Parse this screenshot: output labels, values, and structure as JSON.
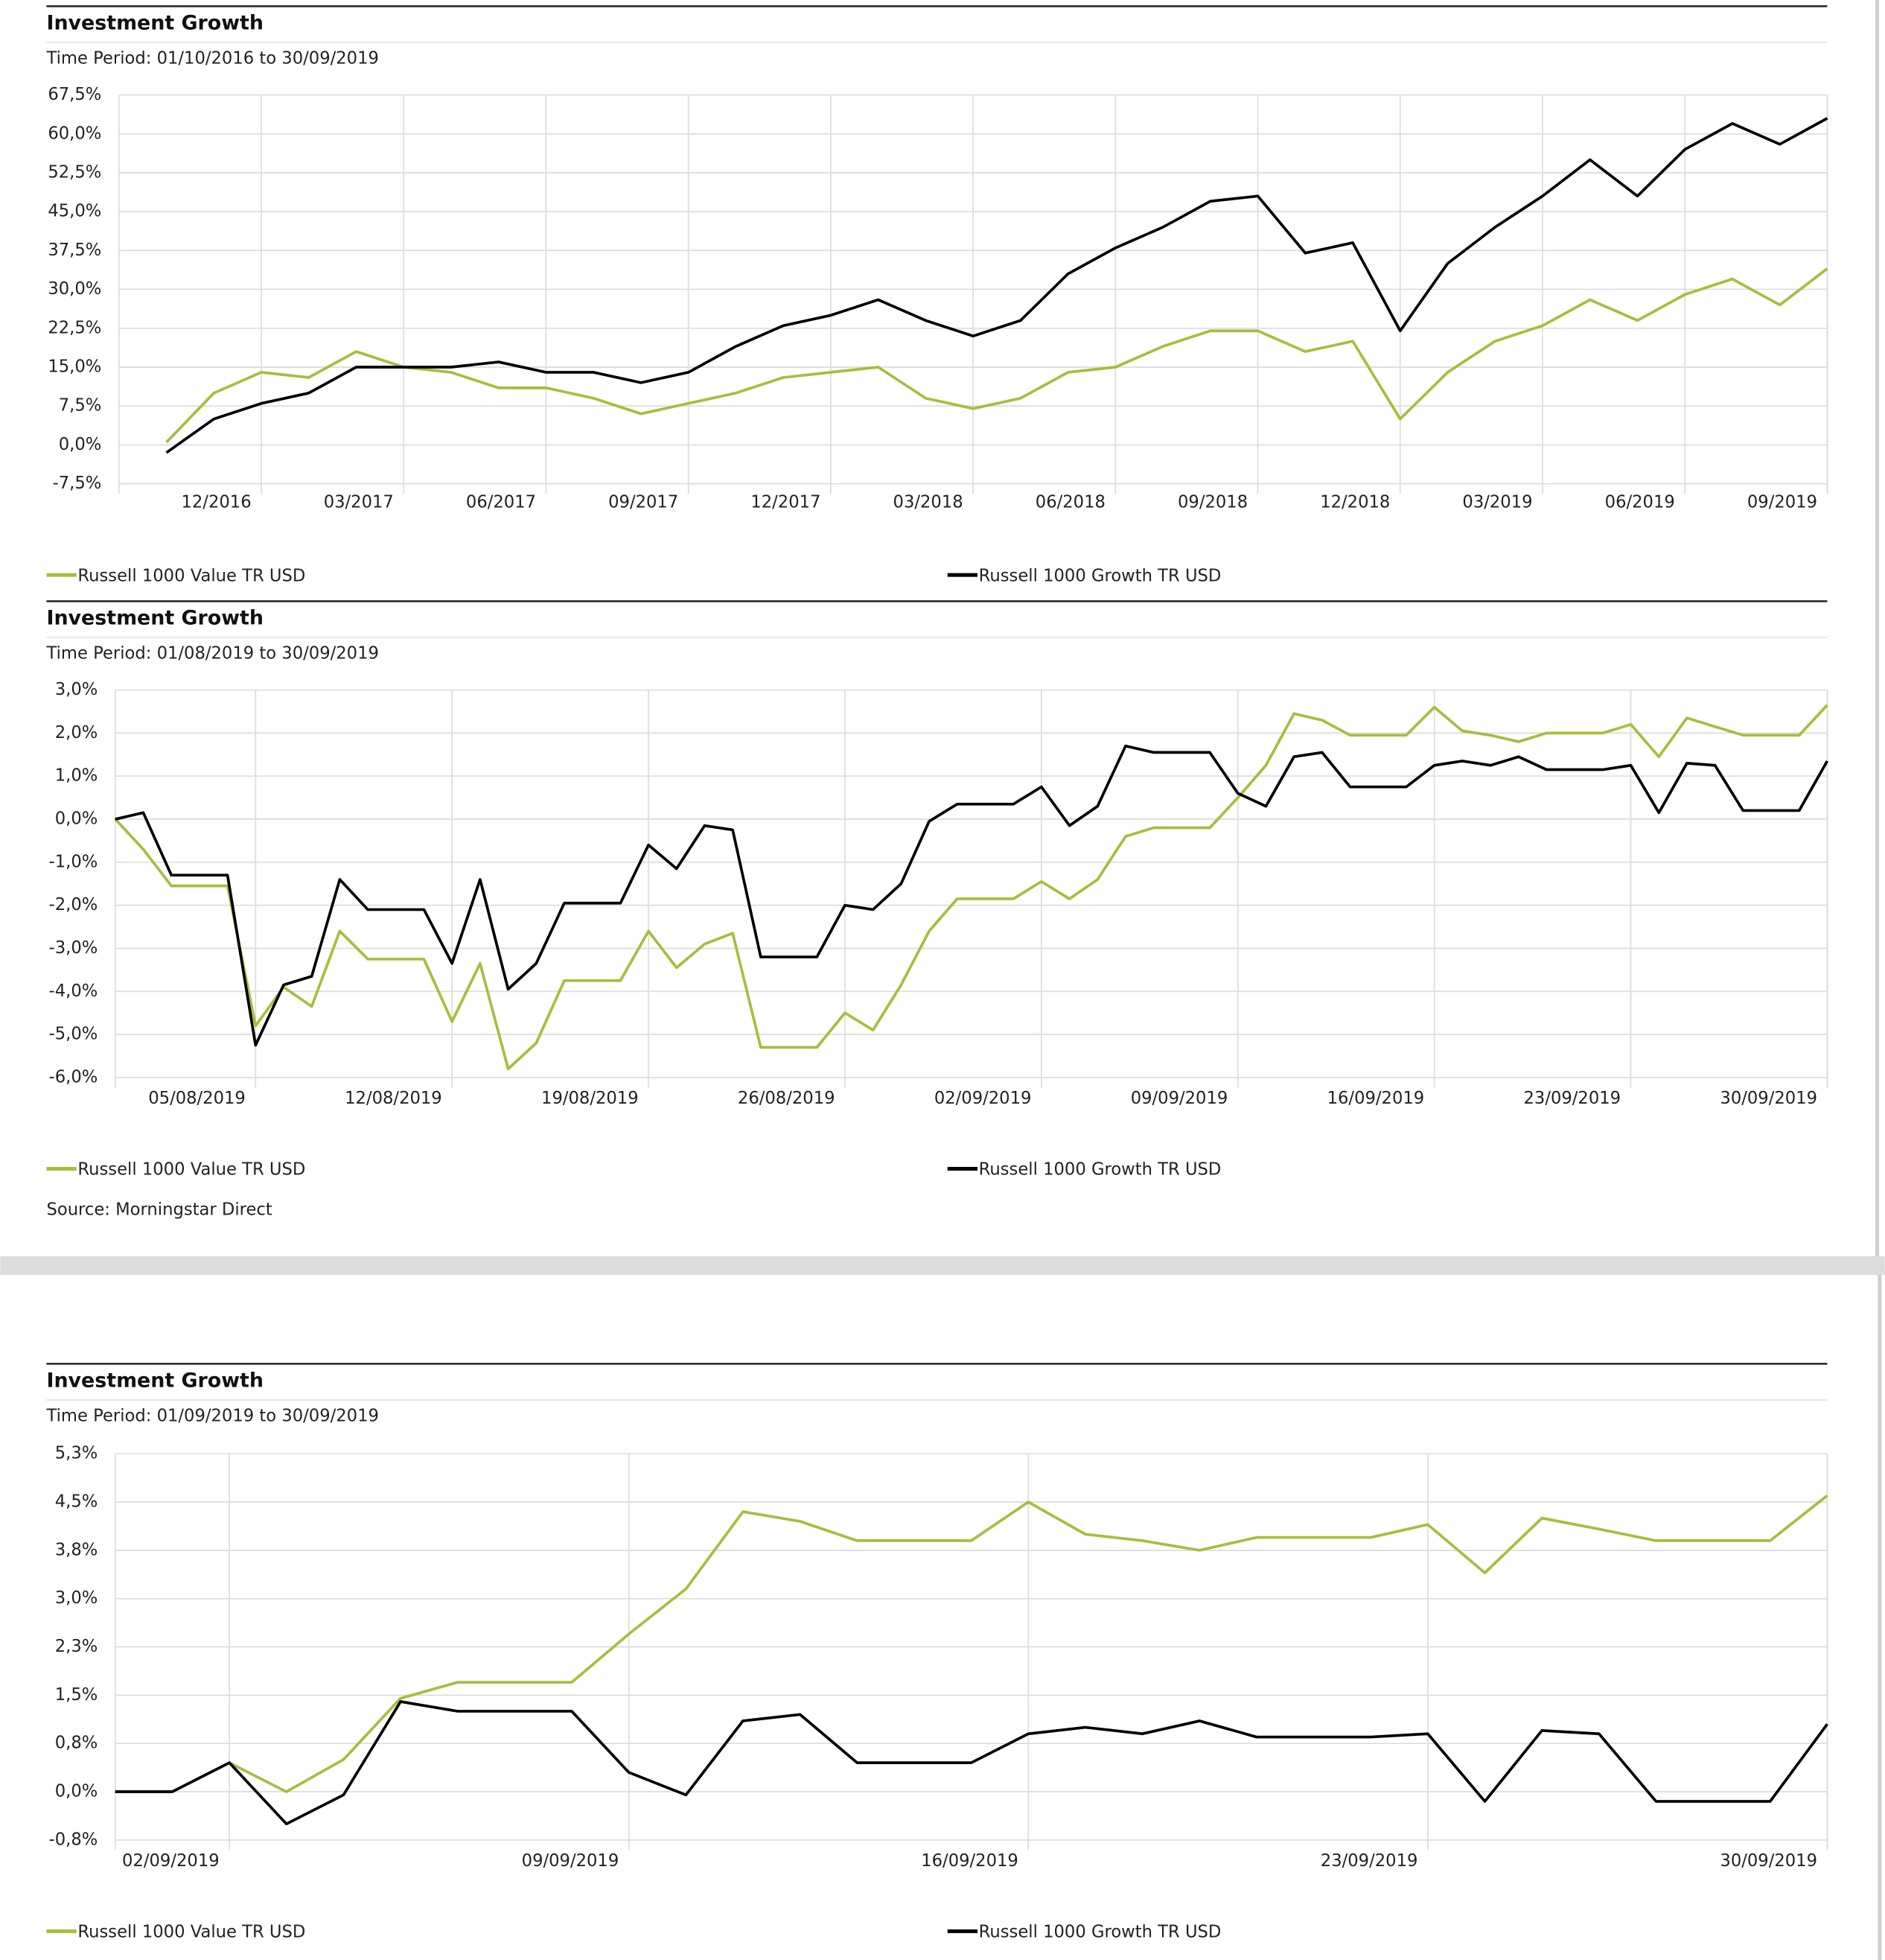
{
  "chart_data": [
    {
      "type": "line",
      "title": "Investment Growth",
      "subtitle": "Time Period: 01/10/2016 to 30/09/2019",
      "categories": [
        null,
        null,
        "12/2016",
        null,
        null,
        "03/2017",
        null,
        null,
        "06/2017",
        null,
        null,
        "09/2017",
        null,
        null,
        "12/2017",
        null,
        null,
        "03/2018",
        null,
        null,
        "06/2018",
        null,
        null,
        "09/2018",
        null,
        null,
        "12/2018",
        null,
        null,
        "03/2019",
        null,
        null,
        "06/2019",
        null,
        null,
        "09/2019"
      ],
      "series": [
        {
          "name": "Russell 1000 Value TR USD",
          "color": "#a4bf3c",
          "values": [
            0.5,
            10,
            14,
            13,
            18,
            15,
            14,
            11,
            11,
            9,
            6,
            8,
            10,
            13,
            14,
            15,
            9,
            7,
            9,
            14,
            15,
            19,
            22,
            22,
            18,
            20,
            5,
            14,
            20,
            23,
            28,
            24,
            29,
            32,
            27,
            34
          ]
        },
        {
          "name": "Russell 1000 Growth TR USD",
          "color": "#000000",
          "values": [
            -1.5,
            5,
            8,
            10,
            15,
            15,
            15,
            16,
            14,
            14,
            12,
            14,
            19,
            23,
            25,
            28,
            24,
            21,
            24,
            33,
            38,
            42,
            47,
            48,
            37,
            39,
            22,
            35,
            42,
            48,
            55,
            48,
            57,
            62,
            58,
            63
          ]
        }
      ],
      "ylim": [
        -7.5,
        67.5
      ],
      "yticks": [
        {
          "value": -7.5,
          "label": "-7,5%"
        },
        {
          "value": 0,
          "label": "0,0%"
        },
        {
          "value": 7.5,
          "label": "7,5%"
        },
        {
          "value": 15,
          "label": "15,0%"
        },
        {
          "value": 22.5,
          "label": "22,5%"
        },
        {
          "value": 30,
          "label": "30,0%"
        },
        {
          "value": 37.5,
          "label": "37,5%"
        },
        {
          "value": 45,
          "label": "45,0%"
        },
        {
          "value": 52.5,
          "label": "52,5%"
        },
        {
          "value": 60,
          "label": "60,0%"
        },
        {
          "value": 67.5,
          "label": "67,5%"
        }
      ],
      "grid": true
    },
    {
      "type": "line",
      "title": "Investment Growth",
      "subtitle": "Time Period: 01/08/2019 to 30/09/2019",
      "x": [
        "31/07/2019",
        "01/08/2019",
        "02/08/2019",
        "03/08/2019",
        "04/08/2019",
        "05/08/2019",
        "06/08/2019",
        "07/08/2019",
        "08/08/2019",
        "09/08/2019",
        "10/08/2019",
        "11/08/2019",
        "12/08/2019",
        "13/08/2019",
        "14/08/2019",
        "15/08/2019",
        "16/08/2019",
        "17/08/2019",
        "18/08/2019",
        "19/08/2019",
        "20/08/2019",
        "21/08/2019",
        "22/08/2019",
        "23/08/2019",
        "24/08/2019",
        "25/08/2019",
        "26/08/2019",
        "27/08/2019",
        "28/08/2019",
        "29/08/2019",
        "30/08/2019",
        "31/08/2019",
        "01/09/2019",
        "02/09/2019",
        "03/09/2019",
        "04/09/2019",
        "05/09/2019",
        "06/09/2019",
        "07/09/2019",
        "08/09/2019",
        "09/09/2019",
        "10/09/2019",
        "11/09/2019",
        "12/09/2019",
        "13/09/2019",
        "14/09/2019",
        "15/09/2019",
        "16/09/2019",
        "17/09/2019",
        "18/09/2019",
        "19/09/2019",
        "20/09/2019",
        "21/09/2019",
        "22/09/2019",
        "23/09/2019",
        "24/09/2019",
        "25/09/2019",
        "26/09/2019",
        "27/09/2019",
        "28/09/2019",
        "29/09/2019",
        "30/09/2019"
      ],
      "xticks": [
        "05/08/2019",
        "12/08/2019",
        "19/08/2019",
        "26/08/2019",
        "02/09/2019",
        "09/09/2019",
        "16/09/2019",
        "23/09/2019",
        "30/09/2019"
      ],
      "series": [
        {
          "name": "Russell 1000 Value TR USD",
          "color": "#a4bf3c",
          "values": [
            0,
            -0.7,
            -1.55,
            -1.55,
            -1.55,
            -4.8,
            -3.9,
            -4.35,
            -2.6,
            -3.25,
            -3.25,
            -3.25,
            -4.7,
            -3.35,
            -5.8,
            -5.2,
            -3.75,
            -3.75,
            -3.75,
            -2.6,
            -3.45,
            -2.9,
            -2.65,
            -5.3,
            -5.3,
            -5.3,
            -4.5,
            -4.9,
            -3.85,
            -2.6,
            -1.85,
            -1.85,
            -1.85,
            -1.45,
            -1.85,
            -1.4,
            -0.4,
            -0.2,
            -0.2,
            -0.2,
            0.5,
            1.25,
            2.45,
            2.3,
            1.95,
            1.95,
            1.95,
            2.6,
            2.05,
            1.95,
            1.8,
            2.0,
            2.0,
            2.0,
            2.2,
            1.45,
            2.35,
            2.15,
            1.95,
            1.95,
            1.95,
            2.65
          ]
        },
        {
          "name": "Russell 1000 Growth TR USD",
          "color": "#000000",
          "values": [
            0,
            0.15,
            -1.3,
            -1.3,
            -1.3,
            -5.25,
            -3.85,
            -3.65,
            -1.4,
            -2.1,
            -2.1,
            -2.1,
            -3.35,
            -1.4,
            -3.95,
            -3.35,
            -1.95,
            -1.95,
            -1.95,
            -0.6,
            -1.15,
            -0.15,
            -0.25,
            -3.2,
            -3.2,
            -3.2,
            -2.0,
            -2.1,
            -1.5,
            -0.05,
            0.35,
            0.35,
            0.35,
            0.75,
            -0.15,
            0.3,
            1.7,
            1.55,
            1.55,
            1.55,
            0.6,
            0.3,
            1.45,
            1.55,
            0.75,
            0.75,
            0.75,
            1.25,
            1.35,
            1.25,
            1.45,
            1.15,
            1.15,
            1.15,
            1.25,
            0.15,
            1.3,
            1.25,
            0.2,
            0.2,
            0.2,
            1.35
          ]
        }
      ],
      "ylim": [
        -6,
        3
      ],
      "yticks": [
        {
          "value": -6,
          "label": "-6,0%"
        },
        {
          "value": -5,
          "label": "-5,0%"
        },
        {
          "value": -4,
          "label": "-4,0%"
        },
        {
          "value": -3,
          "label": "-3,0%"
        },
        {
          "value": -2,
          "label": "-2,0%"
        },
        {
          "value": -1,
          "label": "-1,0%"
        },
        {
          "value": 0,
          "label": "0,0%"
        },
        {
          "value": 1,
          "label": "1,0%"
        },
        {
          "value": 2,
          "label": "2,0%"
        },
        {
          "value": 3,
          "label": "3,0%"
        }
      ],
      "grid": true,
      "source": "Source: Morningstar Direct"
    },
    {
      "type": "line",
      "title": "Investment Growth",
      "subtitle": "Time Period: 01/09/2019 to 30/09/2019",
      "x": [
        "31/08/2019",
        "01/09/2019",
        "02/09/2019",
        "03/09/2019",
        "04/09/2019",
        "05/09/2019",
        "06/09/2019",
        "07/09/2019",
        "08/09/2019",
        "09/09/2019",
        "10/09/2019",
        "11/09/2019",
        "12/09/2019",
        "13/09/2019",
        "14/09/2019",
        "15/09/2019",
        "16/09/2019",
        "17/09/2019",
        "18/09/2019",
        "19/09/2019",
        "20/09/2019",
        "21/09/2019",
        "22/09/2019",
        "23/09/2019",
        "24/09/2019",
        "25/09/2019",
        "26/09/2019",
        "27/09/2019",
        "28/09/2019",
        "29/09/2019",
        "30/09/2019"
      ],
      "xticks": [
        "02/09/2019",
        "09/09/2019",
        "16/09/2019",
        "23/09/2019",
        "30/09/2019"
      ],
      "series": [
        {
          "name": "Russell 1000 Value TR USD",
          "color": "#a4bf3c",
          "values": [
            0,
            0,
            0.45,
            0,
            0.5,
            1.45,
            1.7,
            1.7,
            1.7,
            2.45,
            3.15,
            4.35,
            4.2,
            3.9,
            3.9,
            3.9,
            4.5,
            4.0,
            3.9,
            3.75,
            3.95,
            3.95,
            3.95,
            4.15,
            3.4,
            4.25,
            4.08,
            3.9,
            3.9,
            3.9,
            4.6
          ]
        },
        {
          "name": "Russell 1000 Growth TR USD",
          "color": "#000000",
          "values": [
            0,
            0,
            0.45,
            -0.5,
            -0.05,
            1.4,
            1.25,
            1.25,
            1.25,
            0.3,
            -0.05,
            1.1,
            1.2,
            0.45,
            0.45,
            0.45,
            0.9,
            1.0,
            0.9,
            1.1,
            0.85,
            0.85,
            0.85,
            0.9,
            -0.15,
            0.95,
            0.9,
            -0.15,
            -0.15,
            -0.15,
            1.05
          ]
        }
      ],
      "ylim": [
        -0.75,
        5.25
      ],
      "yticks": [
        {
          "value": -0.75,
          "label": "-0,8%"
        },
        {
          "value": 0,
          "label": "0,0%"
        },
        {
          "value": 0.75,
          "label": "0,8%"
        },
        {
          "value": 1.5,
          "label": "1,5%"
        },
        {
          "value": 2.25,
          "label": "2,3%"
        },
        {
          "value": 3,
          "label": "3,0%"
        },
        {
          "value": 3.75,
          "label": "3,8%"
        },
        {
          "value": 4.5,
          "label": "4,5%"
        },
        {
          "value": 5.25,
          "label": "5,3%"
        }
      ],
      "grid": true
    }
  ]
}
